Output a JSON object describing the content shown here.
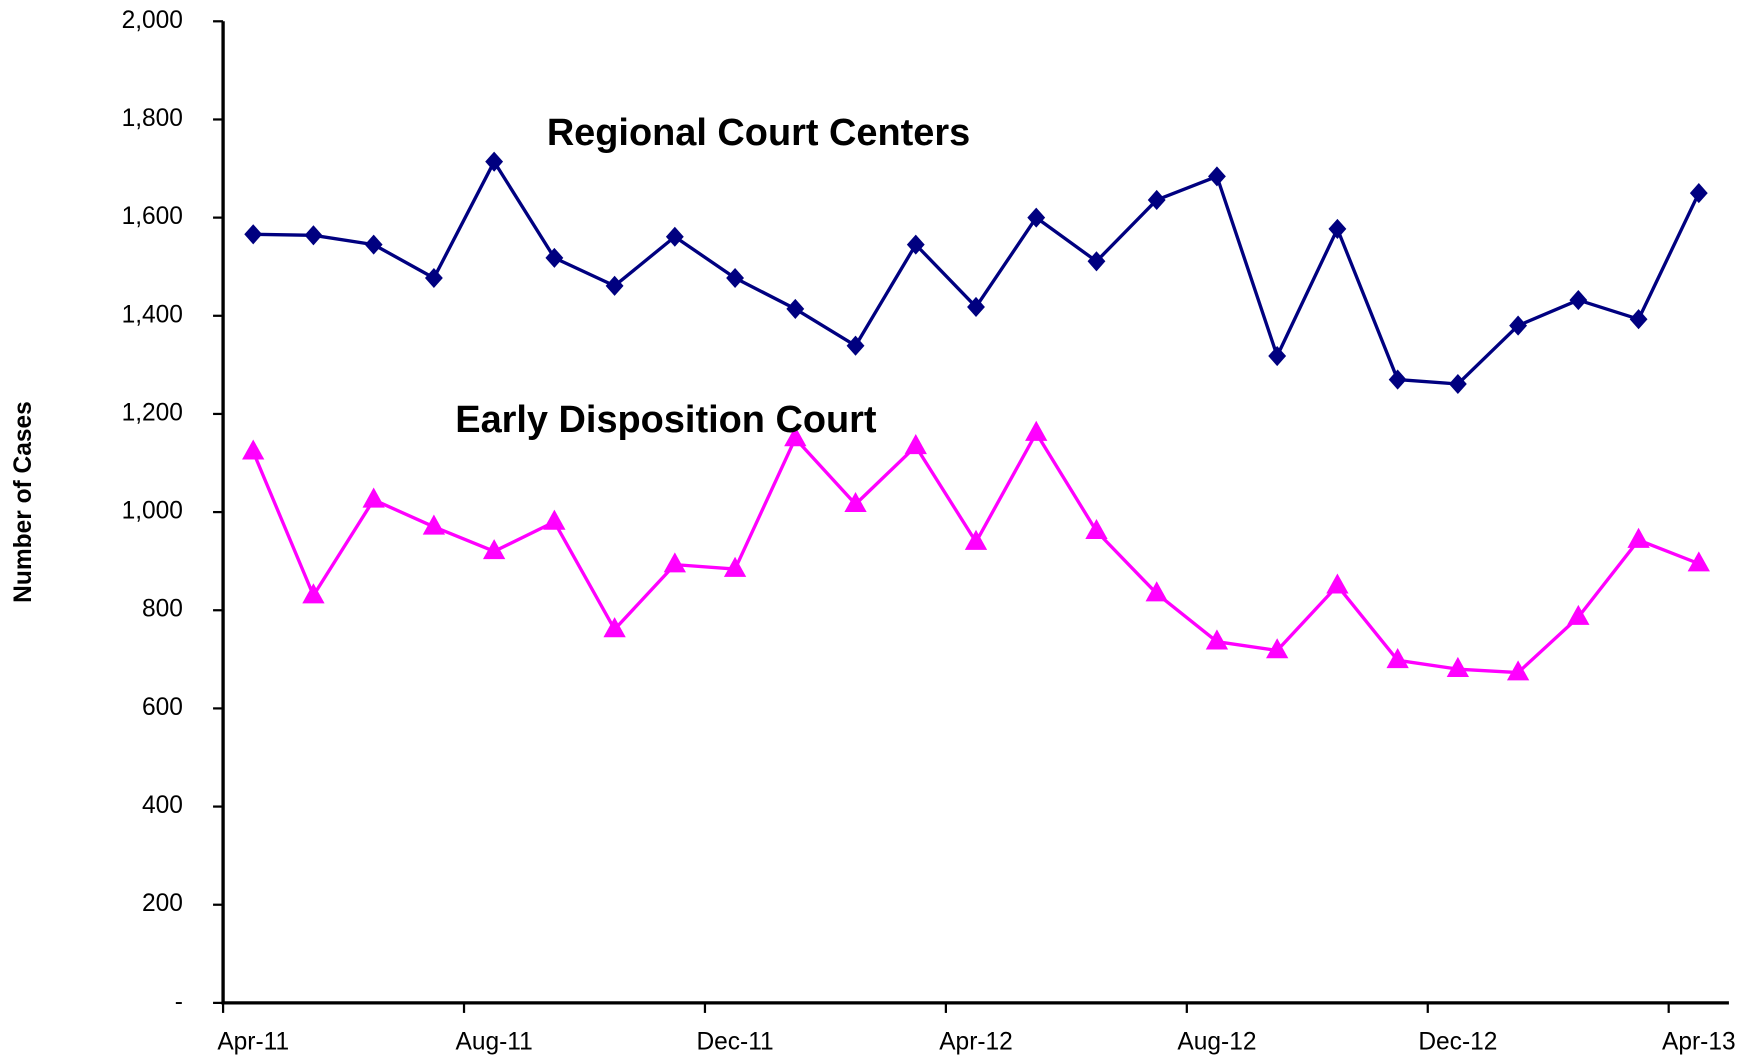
{
  "chart_data": {
    "type": "line",
    "y_label": "Number of Cases",
    "categories": [
      "Apr-11",
      null,
      null,
      null,
      "Aug-11",
      null,
      null,
      null,
      "Dec-11",
      null,
      null,
      null,
      "Apr-12",
      null,
      null,
      null,
      "Aug-12",
      null,
      null,
      null,
      "Dec-12",
      null,
      null,
      null,
      "Apr-13"
    ],
    "series": [
      {
        "name": "Regional Court Centers",
        "color": "#000080",
        "marker": "diamond",
        "values": [
          1566,
          1564,
          1545,
          1477,
          1714,
          1518,
          1461,
          1561,
          1477,
          1414,
          1339,
          1545,
          1418,
          1600,
          1511,
          1636,
          1684,
          1318,
          1577,
          1270,
          1261,
          1380,
          1432,
          1393,
          1650
        ]
      },
      {
        "name": "Early Disposition Court",
        "color": "#ff00ff",
        "marker": "triangle",
        "values": [
          1123,
          830,
          1025,
          970,
          920,
          980,
          761,
          893,
          884,
          1150,
          1016,
          1134,
          939,
          1161,
          961,
          834,
          736,
          718,
          850,
          698,
          680,
          673,
          786,
          943,
          895
        ]
      }
    ],
    "ylim": [
      0,
      2000
    ],
    "yticks": [
      {
        "value": 0,
        "label": "-"
      },
      200,
      400,
      600,
      800,
      {
        "value": 1000,
        "label": "1,000"
      },
      {
        "value": 1200,
        "label": "1,200"
      },
      {
        "value": 1400,
        "label": "1,400"
      },
      {
        "value": 1600,
        "label": "1,600"
      },
      {
        "value": 1800,
        "label": "1,800"
      },
      {
        "value": 2000,
        "label": "2,000"
      }
    ],
    "grid": false
  }
}
